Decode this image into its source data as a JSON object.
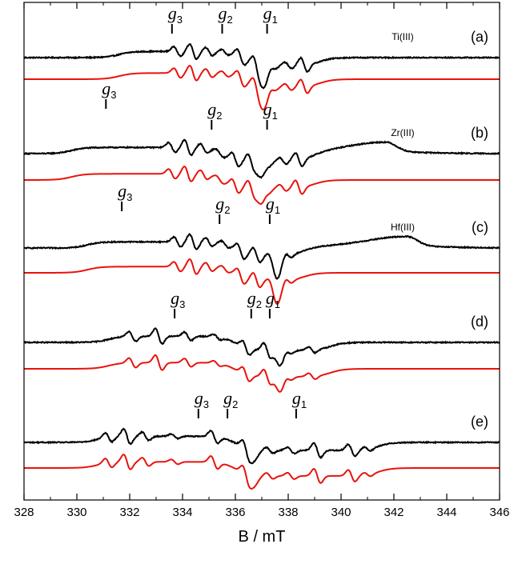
{
  "chart_data": {
    "type": "line",
    "xlabel": "B / mT",
    "xlim": [
      328,
      346
    ],
    "x_major_ticks": [
      328,
      330,
      332,
      334,
      336,
      338,
      340,
      342,
      344,
      346
    ],
    "x_tick_labels": [
      "328",
      "330",
      "332",
      "334",
      "336",
      "338",
      "340",
      "342",
      "344",
      "346"
    ],
    "x_minor_step": 1,
    "legend": "none",
    "grid": false,
    "colors": {
      "experimental": "#000000",
      "simulated": "#e8120c"
    },
    "g_letter": "g",
    "panels": [
      {
        "label": "(a)",
        "ion": "Ti(III)",
        "g_markers": [
          {
            "sub": "3",
            "B": 333.6
          },
          {
            "sub": "2",
            "B": 335.5
          },
          {
            "sub": "1",
            "B": 337.2
          }
        ],
        "signal_start": 331.6,
        "signal_end": 339.2,
        "peak_fields": [
          333.8,
          334.4,
          335.0,
          335.6,
          336.2,
          336.8,
          337.4,
          338.0,
          338.6
        ],
        "center": 336.3,
        "spacing": 0.6,
        "dip_B": 337.1,
        "dip_depth": 1.2
      },
      {
        "label": "(b)",
        "ion": "Zr(III)",
        "g_markers": [
          {
            "sub": "3",
            "B": 331.1
          },
          {
            "sub": "2",
            "B": 335.1
          },
          {
            "sub": "1",
            "B": 337.2
          }
        ],
        "signal_start": 329.8,
        "signal_end": 339.0,
        "peak_fields": [
          333.6,
          334.2,
          334.8,
          335.4,
          336.0,
          336.6,
          337.2,
          337.8,
          338.4
        ],
        "center": 335.5,
        "spacing": 0.6,
        "dip_B": 337.0,
        "dip_depth": 1.0,
        "extra_peak_B": 341.7
      },
      {
        "label": "(c)",
        "ion": "Hf(III)",
        "g_markers": [
          {
            "sub": "3",
            "B": 331.7
          },
          {
            "sub": "2",
            "B": 335.4
          },
          {
            "sub": "1",
            "B": 337.3
          }
        ],
        "signal_start": 330.4,
        "signal_end": 338.6,
        "peak_fields": [
          333.8,
          334.4,
          335.0,
          335.6,
          336.2,
          336.8,
          337.4,
          338.0
        ],
        "center": 336.0,
        "spacing": 0.6,
        "dip_B": 337.6,
        "dip_depth": 1.2,
        "extra_peak_B": 342.5
      },
      {
        "label": "(d)",
        "ion": "",
        "g_markers": [
          {
            "sub": "3",
            "B": 333.7
          },
          {
            "sub": "2",
            "B": 336.6
          },
          {
            "sub": "1",
            "B": 337.3
          }
        ],
        "signal_start": 331.2,
        "signal_end": 339.6,
        "peak_fields": [
          332.1,
          333.1,
          334.2,
          335.3,
          336.4,
          337.2,
          338.0,
          338.9
        ],
        "center": 336.0,
        "spacing": 0.9,
        "dip_B": 337.7,
        "dip_depth": 0.9
      },
      {
        "label": "(e)",
        "ion": "",
        "g_markers": [
          {
            "sub": "3",
            "B": 334.6
          },
          {
            "sub": "2",
            "B": 335.7
          },
          {
            "sub": "1",
            "B": 338.3
          }
        ],
        "signal_start": 330.8,
        "signal_end": 341.4,
        "peak_fields": [
          331.2,
          331.9,
          332.6,
          333.7,
          335.2,
          336.4,
          337.3,
          338.1,
          339.1,
          340.4,
          341.0
        ],
        "center": 336.0,
        "spacing": 0.8,
        "dip_B": 336.7,
        "dip_depth": 0.6
      }
    ]
  }
}
